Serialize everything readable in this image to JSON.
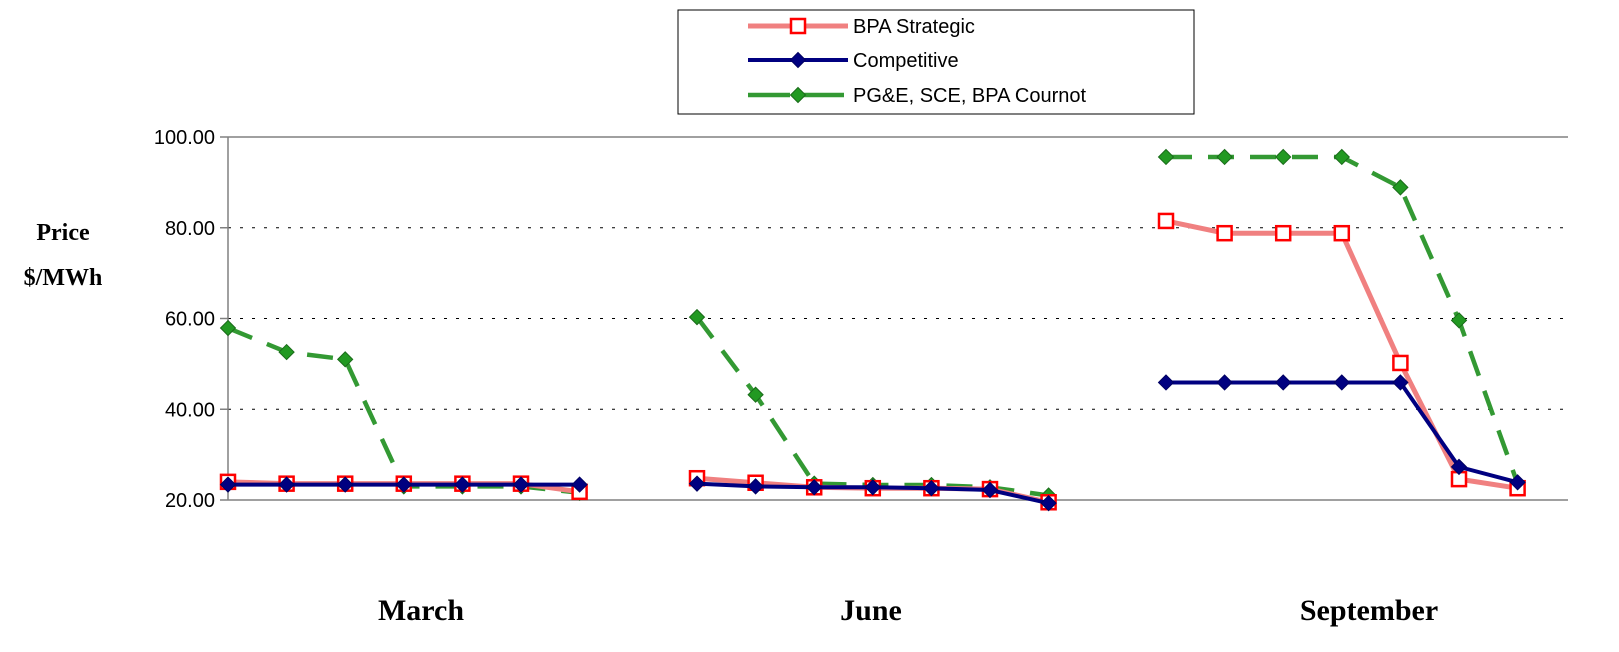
{
  "chart_data": {
    "type": "line",
    "ylabel": [
      "Price",
      "$/MWh"
    ],
    "categories": [
      "March",
      "June",
      "September"
    ],
    "ylim": [
      20,
      100
    ],
    "yticks": [
      "20.00",
      "40.00",
      "60.00",
      "80.00",
      "100.00"
    ],
    "grid": true,
    "legend_position": "top-center",
    "points_per_category": 7,
    "series": [
      {
        "name": "BPA Strategic",
        "color": "#f08080",
        "marker": "square-open",
        "marker_color": "#ff0000",
        "values": [
          [
            24.0,
            23.6,
            23.6,
            23.6,
            23.6,
            23.6,
            21.8
          ],
          [
            24.8,
            23.8,
            22.8,
            22.6,
            22.6,
            22.4,
            19.5
          ],
          [
            81.5,
            78.8,
            78.8,
            78.8,
            50.2,
            24.6,
            22.6
          ]
        ]
      },
      {
        "name": "Competitive",
        "color": "#000080",
        "marker": "diamond",
        "marker_color": "#000080",
        "values": [
          [
            23.4,
            23.4,
            23.4,
            23.4,
            23.4,
            23.4,
            23.4
          ],
          [
            23.6,
            23.0,
            22.8,
            22.8,
            22.6,
            22.2,
            19.3
          ],
          [
            45.9,
            45.9,
            45.9,
            45.9,
            45.9,
            27.3,
            23.9
          ]
        ]
      },
      {
        "name": "PG&E, SCE, BPA Cournot",
        "color": "#339933",
        "marker": "diamond",
        "marker_color": "#229922",
        "values": [
          [
            57.9,
            52.6,
            51.0,
            23.0,
            23.0,
            23.0,
            21.6
          ],
          [
            60.3,
            43.2,
            23.6,
            23.3,
            23.3,
            22.8,
            21.0
          ],
          [
            95.6,
            95.6,
            95.6,
            95.6,
            88.9,
            59.6,
            23.6
          ]
        ]
      }
    ]
  }
}
